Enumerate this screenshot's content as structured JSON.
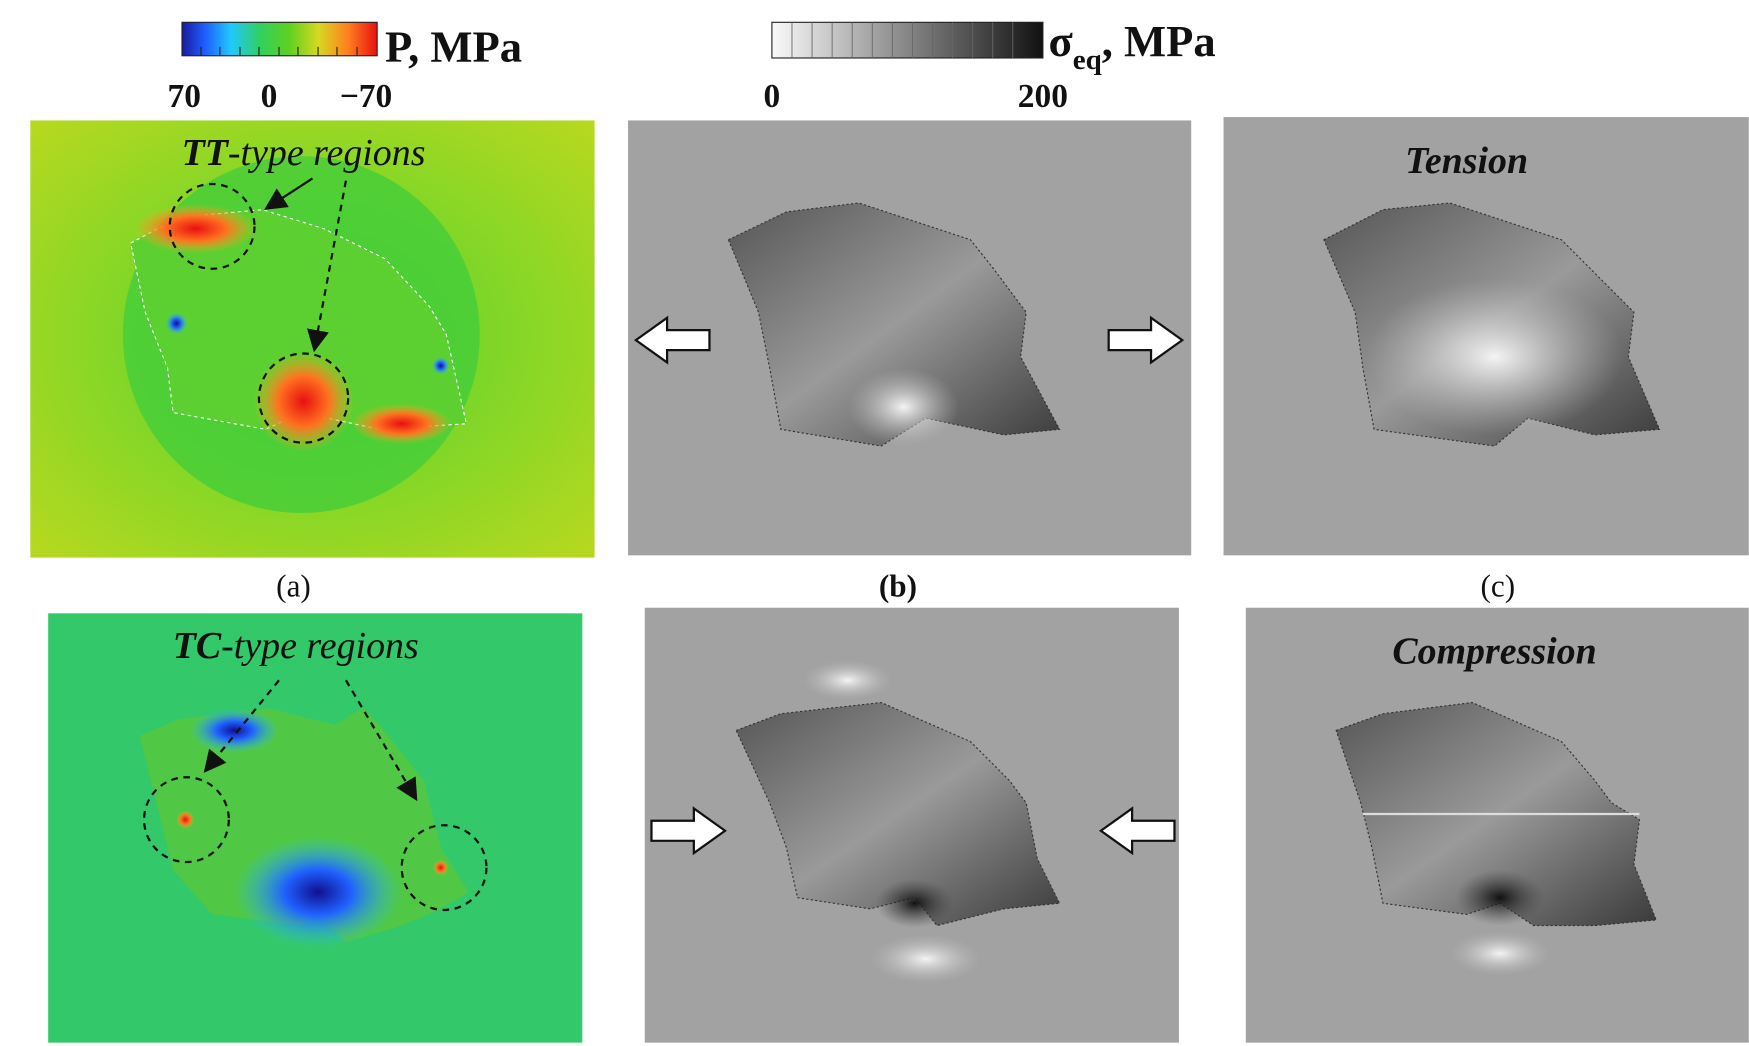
{
  "colorbars": [
    {
      "title": "P, MPa",
      "ticks": [
        "70",
        "0",
        "−70"
      ]
    },
    {
      "title_symbol": "σ",
      "title_subscript": "eq",
      "title_unit": ", MPa",
      "ticks": [
        "0",
        "200"
      ]
    }
  ],
  "panels": [
    {
      "label": "(a)",
      "annotation_bold": "TT",
      "annotation_rest": "-type regions"
    },
    {
      "label": "(b)"
    },
    {
      "label": "(c)",
      "annotation": "Tension"
    }
  ],
  "bottom_panels": [
    {
      "annotation_bold": "TC",
      "annotation_rest": "-type regions"
    },
    {},
    {
      "annotation": "Compression"
    }
  ]
}
